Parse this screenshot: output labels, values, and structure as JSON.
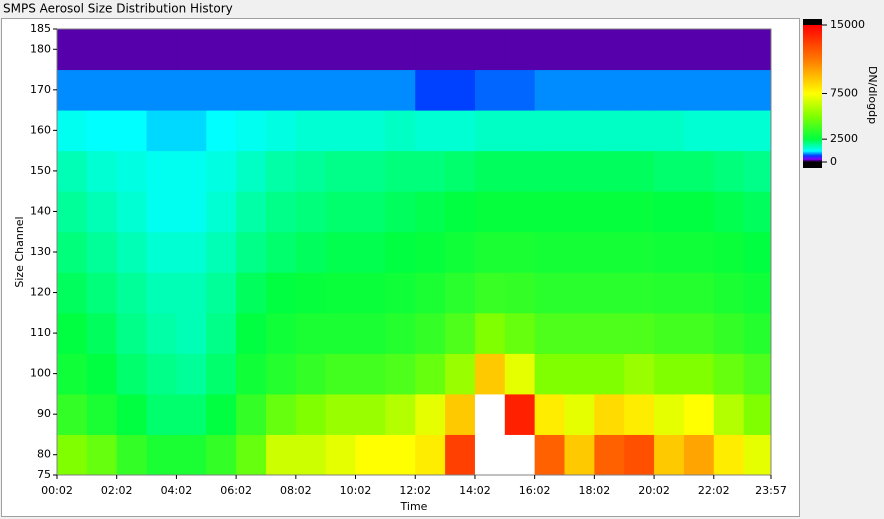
{
  "chart_data": {
    "type": "heatmap",
    "title": "SMPS Aerosol Size Distribution History",
    "x_label": "Time",
    "y_label": "Size Channel",
    "colorbar_label": "DN/dlogdp",
    "xlim": [
      2,
      1437
    ],
    "xticks": [
      {
        "value": 2,
        "label": "00:02"
      },
      {
        "value": 122,
        "label": "02:02"
      },
      {
        "value": 242,
        "label": "04:02"
      },
      {
        "value": 362,
        "label": "06:02"
      },
      {
        "value": 482,
        "label": "08:02"
      },
      {
        "value": 602,
        "label": "10:02"
      },
      {
        "value": 722,
        "label": "12:02"
      },
      {
        "value": 842,
        "label": "14:02"
      },
      {
        "value": 962,
        "label": "16:02"
      },
      {
        "value": 1082,
        "label": "18:02"
      },
      {
        "value": 1202,
        "label": "20:02"
      },
      {
        "value": 1322,
        "label": "22:02"
      },
      {
        "value": 1437,
        "label": "23:57"
      }
    ],
    "ylim": [
      75,
      185
    ],
    "yticks": [
      75,
      80,
      90,
      100,
      110,
      120,
      130,
      140,
      150,
      160,
      170,
      180,
      185
    ],
    "zlim": [
      0,
      15000
    ],
    "zticks": [
      0,
      2500,
      7500,
      15000
    ],
    "colorscale": [
      [
        0,
        "#000000"
      ],
      [
        300,
        "#8000ff"
      ],
      [
        700,
        "#0040ff"
      ],
      [
        1200,
        "#00ffff"
      ],
      [
        2500,
        "#00ff40"
      ],
      [
        5000,
        "#80ff00"
      ],
      [
        7500,
        "#ffff00"
      ],
      [
        11000,
        "#ff8000"
      ],
      [
        15000,
        "#ff0000"
      ]
    ],
    "overflow_color": "#ffffff",
    "x_edges": [
      2,
      62,
      122,
      182,
      242,
      302,
      362,
      422,
      482,
      542,
      602,
      662,
      722,
      782,
      842,
      902,
      962,
      1022,
      1082,
      1142,
      1202,
      1262,
      1322,
      1382,
      1437
    ],
    "y_edges": [
      75,
      85,
      95,
      105,
      115,
      125,
      135,
      145,
      155,
      165,
      175,
      185
    ],
    "z": [
      [
        5000,
        4500,
        3500,
        3000,
        3000,
        3500,
        4500,
        6500,
        6500,
        7000,
        7500,
        7500,
        8000,
        13000,
        16000,
        16000,
        12000,
        9000,
        12000,
        12500,
        9000,
        10000,
        8000,
        7000
      ],
      [
        3500,
        3000,
        2500,
        2200,
        2200,
        2500,
        3500,
        4500,
        5000,
        5500,
        5500,
        6000,
        7000,
        9000,
        16000,
        14000,
        8000,
        7000,
        8500,
        8000,
        7000,
        7500,
        6000,
        5000
      ],
      [
        2800,
        2500,
        2200,
        2000,
        1900,
        2200,
        2800,
        3200,
        3500,
        3800,
        3800,
        4000,
        4500,
        5500,
        9000,
        7000,
        5000,
        5000,
        5000,
        5500,
        5000,
        5000,
        4500,
        4000
      ],
      [
        2500,
        2300,
        2000,
        1800,
        1700,
        2000,
        2500,
        2800,
        3000,
        3000,
        3000,
        3200,
        3500,
        4000,
        5000,
        4500,
        4000,
        4000,
        4000,
        4000,
        3800,
        3800,
        3500,
        3200
      ],
      [
        2300,
        2100,
        1900,
        1700,
        1700,
        1900,
        2300,
        2500,
        2600,
        2700,
        2700,
        2800,
        3000,
        3300,
        3600,
        3500,
        3300,
        3300,
        3300,
        3300,
        3200,
        3200,
        3000,
        2800
      ],
      [
        2100,
        1900,
        1700,
        1500,
        1500,
        1700,
        2000,
        2200,
        2300,
        2400,
        2400,
        2500,
        2600,
        2800,
        3000,
        3000,
        2900,
        2900,
        2900,
        2900,
        2800,
        2800,
        2700,
        2500
      ],
      [
        1900,
        1700,
        1500,
        1300,
        1300,
        1500,
        1800,
        2000,
        2100,
        2200,
        2200,
        2300,
        2400,
        2500,
        2600,
        2600,
        2600,
        2600,
        2600,
        2600,
        2500,
        2500,
        2400,
        2300
      ],
      [
        1700,
        1500,
        1400,
        1300,
        1300,
        1400,
        1600,
        1800,
        1900,
        2000,
        2000,
        2100,
        2100,
        2200,
        2300,
        2300,
        2300,
        2300,
        2300,
        2300,
        2200,
        2200,
        2100,
        2000
      ],
      [
        1300,
        1200,
        1200,
        1100,
        1100,
        1200,
        1300,
        1400,
        1500,
        1500,
        1500,
        1600,
        1500,
        1500,
        1600,
        1600,
        1600,
        1600,
        1600,
        1600,
        1600,
        1500,
        1500,
        1500
      ],
      [
        900,
        900,
        900,
        900,
        900,
        900,
        900,
        900,
        900,
        900,
        900,
        900,
        700,
        700,
        800,
        800,
        900,
        900,
        900,
        900,
        900,
        900,
        900,
        900
      ],
      [
        200,
        200,
        200,
        200,
        200,
        200,
        200,
        200,
        200,
        200,
        200,
        200,
        200,
        200,
        200,
        200,
        200,
        200,
        200,
        200,
        200,
        200,
        200,
        200
      ]
    ]
  }
}
